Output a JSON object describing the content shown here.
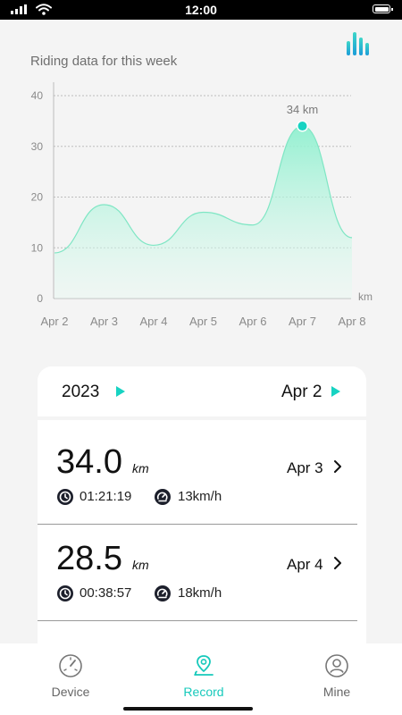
{
  "status_bar": {
    "time": "12:00"
  },
  "colors": {
    "accent": "#17d3c2",
    "area_top": "#8ff0cf",
    "text": "#111111",
    "muted": "#8a8a8a"
  },
  "chart_title": "Riding data for this week",
  "chart_data": {
    "type": "area",
    "title": "Riding data for this week",
    "x": [
      "Apr 2",
      "Apr 3",
      "Apr 4",
      "Apr 5",
      "Apr 6",
      "Apr 7",
      "Apr 8"
    ],
    "values": [
      9,
      18.5,
      10.5,
      17,
      14.5,
      34,
      12
    ],
    "ylim": [
      0,
      40
    ],
    "yticks": [
      0,
      10,
      20,
      30,
      40
    ],
    "xlabel": "km",
    "grid": true,
    "highlight": {
      "index": 5,
      "label": "34 km"
    }
  },
  "selector": {
    "year": "2023",
    "date": "Apr 2"
  },
  "rides": [
    {
      "distance": "34.0",
      "unit": "km",
      "date": "Apr 3",
      "duration": "01:21:19",
      "speed": "13km/h"
    },
    {
      "distance": "28.5",
      "unit": "km",
      "date": "Apr 4",
      "duration": "00:38:57",
      "speed": "18km/h"
    }
  ],
  "tabs": [
    {
      "label": "Device",
      "icon": "speedometer-icon",
      "active": false
    },
    {
      "label": "Record",
      "icon": "location-pin-icon",
      "active": true
    },
    {
      "label": "Mine",
      "icon": "user-icon",
      "active": false
    }
  ]
}
